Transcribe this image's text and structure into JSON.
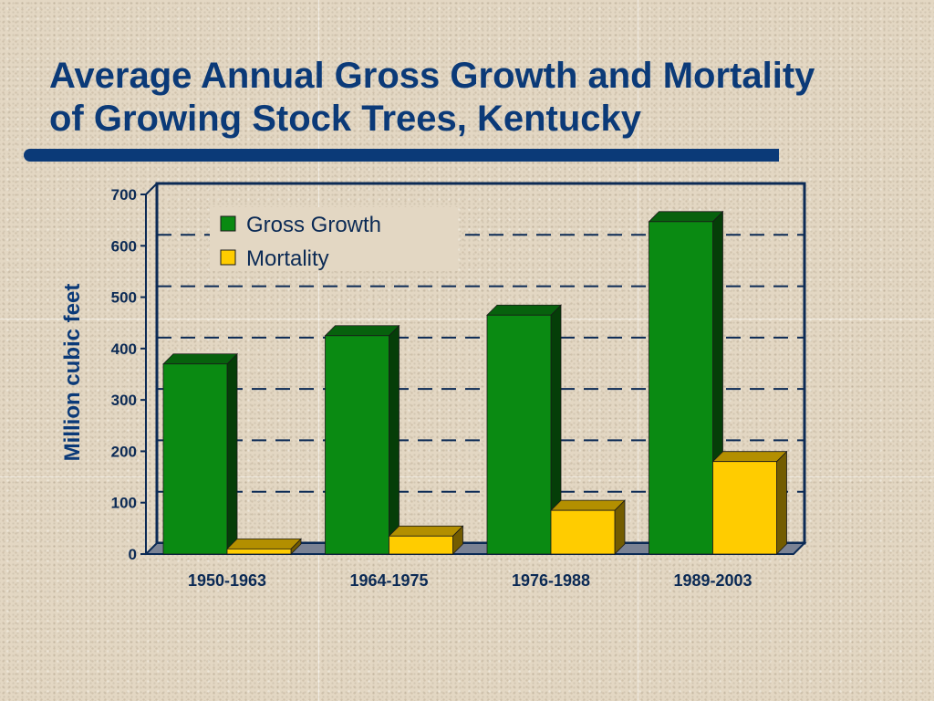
{
  "slide": {
    "title_line1": "Average Annual Gross Growth and Mortality",
    "title_line2": "of Growing Stock Trees, Kentucky"
  },
  "chart_data": {
    "type": "bar",
    "title": "",
    "ylabel": "Million cubic feet",
    "xlabel": "",
    "categories": [
      "1950-1963",
      "1964-1975",
      "1976-1988",
      "1989-2003"
    ],
    "series": [
      {
        "name": "Gross Growth",
        "values": [
          370,
          425,
          465,
          647
        ],
        "color": "#0a8a12"
      },
      {
        "name": "Mortality",
        "values": [
          10,
          35,
          85,
          180
        ],
        "color": "#ffcc00"
      }
    ],
    "ylim": [
      0,
      700
    ],
    "yticks": [
      0,
      100,
      200,
      300,
      400,
      500,
      600,
      700
    ],
    "grid": "dashed horizontal",
    "legend": "top-left",
    "style": "3d"
  }
}
